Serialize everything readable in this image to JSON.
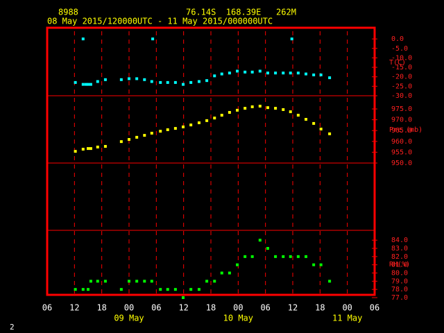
{
  "header": {
    "station": "8988",
    "location": "76.14S  168.39E   262M",
    "period": "08 May 2015/120000UTC - 11 May 2015/000000UTC"
  },
  "footer_label": "2",
  "chart_data": [
    {
      "type": "scatter",
      "label": "T(C)",
      "color": "#00ffff",
      "xlim": [
        6,
        78
      ],
      "x": [
        12.2,
        13.9,
        13.9,
        14.5,
        15.0,
        15.6,
        17.1,
        18.8,
        22.3,
        24.0,
        25.7,
        27.4,
        29.0,
        29.2,
        30.9,
        32.5,
        34.2,
        35.9,
        37.6,
        39.4,
        41.1,
        42.8,
        44.4,
        46.1,
        47.8,
        49.5,
        51.1,
        52.8,
        54.5,
        56.2,
        57.9,
        59.5,
        59.8,
        61.2,
        62.9,
        64.6,
        66.2,
        68.1
      ],
      "values": [
        -23,
        -24,
        0,
        -24,
        -24,
        -24,
        -22.5,
        -21.5,
        -21.5,
        -21,
        -21,
        -21.5,
        -22.5,
        0,
        -23,
        -23,
        -23,
        -24,
        -23,
        -22.5,
        -22,
        -19.5,
        -18.5,
        -18,
        -17,
        -17.5,
        -17.5,
        -17,
        -18,
        -18,
        -18,
        -18,
        0,
        -18,
        -18.5,
        -19,
        -19,
        -20.5
      ],
      "ylim": [
        -30,
        5.9
      ],
      "yticks": [
        {
          "value": 0,
          "label": "0.0"
        },
        {
          "value": -5,
          "label": "-5.0"
        },
        {
          "value": -10,
          "label": "-10.0"
        },
        {
          "value": -15,
          "label": "-15.0"
        },
        {
          "value": -20,
          "label": "-20.0"
        },
        {
          "value": -25,
          "label": "-25.0"
        },
        {
          "value": -30,
          "label": "-30.0"
        }
      ]
    },
    {
      "type": "scatter",
      "label": "Pre (mb)",
      "color": "#ffff00",
      "xlim": [
        6,
        78
      ],
      "x": [
        12.2,
        13.9,
        15.0,
        15.6,
        17.1,
        18.8,
        22.3,
        24.0,
        25.7,
        27.4,
        29.0,
        30.9,
        32.5,
        34.2,
        35.9,
        37.6,
        39.4,
        41.1,
        42.8,
        44.4,
        46.1,
        47.8,
        49.5,
        51.1,
        52.8,
        54.5,
        56.2,
        57.9,
        59.5,
        61.2,
        62.9,
        64.6,
        66.2,
        68.1
      ],
      "values": [
        955.4,
        956.4,
        956.7,
        956.7,
        957.4,
        957.7,
        959.9,
        960.9,
        961.9,
        962.8,
        963.8,
        964.7,
        965.4,
        966.0,
        966.7,
        967.6,
        968.6,
        969.6,
        970.8,
        972.1,
        973.4,
        974.4,
        975.3,
        976.0,
        976.3,
        975.6,
        975.3,
        974.7,
        973.7,
        972.1,
        970.2,
        968.3,
        965.7,
        963.5
      ],
      "ylim": [
        950,
        981.1
      ],
      "yticks": [
        {
          "value": 975,
          "label": "975.0"
        },
        {
          "value": 970,
          "label": "970.0"
        },
        {
          "value": 965,
          "label": "965.0"
        },
        {
          "value": 960,
          "label": "960.0"
        },
        {
          "value": 955,
          "label": "955.0"
        },
        {
          "value": 950,
          "label": "950.0"
        }
      ]
    },
    {
      "type": "scatter",
      "label": "RH(%)",
      "color": "#00ff00",
      "xlim": [
        6,
        78
      ],
      "x": [
        12.2,
        13.9,
        15.0,
        15.6,
        17.1,
        18.8,
        22.3,
        24.0,
        25.7,
        27.4,
        29.0,
        30.9,
        32.5,
        34.2,
        35.9,
        37.6,
        39.4,
        41.1,
        42.8,
        44.4,
        46.1,
        47.8,
        49.5,
        51.1,
        52.8,
        54.5,
        56.2,
        57.9,
        59.5,
        61.2,
        62.9,
        64.6,
        66.2,
        68.1
      ],
      "values": [
        78,
        78,
        78,
        79,
        79,
        79,
        78,
        79,
        79,
        79,
        79,
        78,
        78,
        78,
        77,
        78,
        78,
        79,
        79,
        80,
        80,
        81,
        82,
        82,
        84,
        83,
        82,
        82,
        82,
        82,
        82,
        81,
        81,
        79
      ],
      "ylim": [
        77,
        85.2
      ],
      "yticks": [
        {
          "value": 84,
          "label": "84.0"
        },
        {
          "value": 83,
          "label": "83.0"
        },
        {
          "value": 82,
          "label": "82.0"
        },
        {
          "value": 81,
          "label": "81.0"
        },
        {
          "value": 80,
          "label": "80.0"
        },
        {
          "value": 79,
          "label": "79.0"
        },
        {
          "value": 78,
          "label": "78.0"
        },
        {
          "value": 77,
          "label": "77.0"
        }
      ],
      "xticks": [
        {
          "value": 6,
          "label": "06"
        },
        {
          "value": 12,
          "label": "12"
        },
        {
          "value": 18,
          "label": "18"
        },
        {
          "value": 24,
          "label": "00"
        },
        {
          "value": 30,
          "label": "06"
        },
        {
          "value": 36,
          "label": "12"
        },
        {
          "value": 42,
          "label": "18"
        },
        {
          "value": 48,
          "label": "00"
        },
        {
          "value": 54,
          "label": "06"
        },
        {
          "value": 60,
          "label": "12"
        },
        {
          "value": 66,
          "label": "18"
        },
        {
          "value": 72,
          "label": "00"
        },
        {
          "value": 78,
          "label": "06"
        }
      ],
      "date_labels": [
        {
          "value": 24,
          "label": "09 May"
        },
        {
          "value": 48,
          "label": "10 May"
        },
        {
          "value": 72,
          "label": "11 May"
        }
      ]
    }
  ]
}
